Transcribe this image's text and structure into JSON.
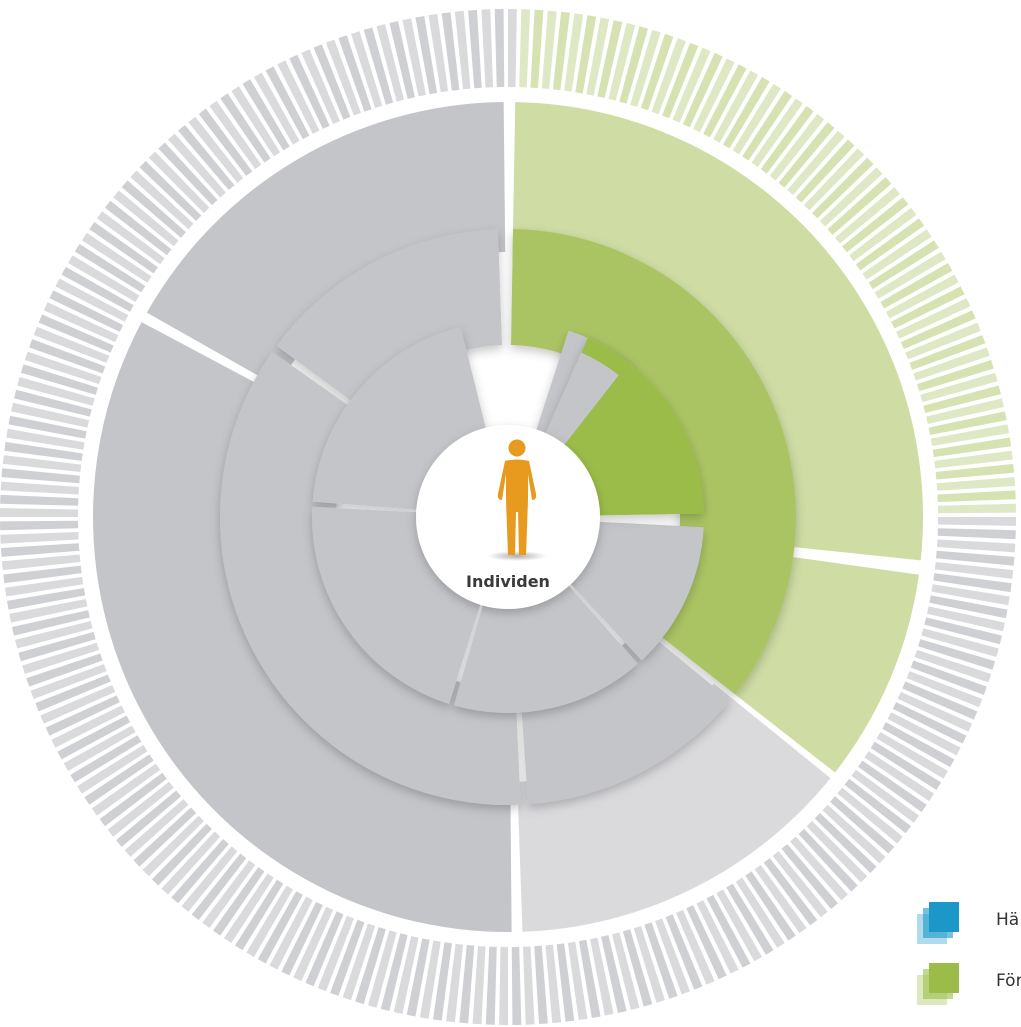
{
  "center": {
    "label": "Individen",
    "icon": "person-icon"
  },
  "colors": {
    "gray_light": "#dadadd",
    "gray": "#c4c5c8",
    "green_inner": "#9bbc48",
    "green_mid": "#abc463",
    "green_outer": "#cfdca4",
    "green_outer_light": "#dfe8c4",
    "blue": "#1b97c8",
    "person": "#e89a1e"
  },
  "legend": [
    {
      "label": "Hä",
      "color": "#1b97c8",
      "icon": "blue-stack-icon"
    },
    {
      "label": "För",
      "color": "#9bbc48",
      "icon": "green-stack-icon"
    }
  ]
}
